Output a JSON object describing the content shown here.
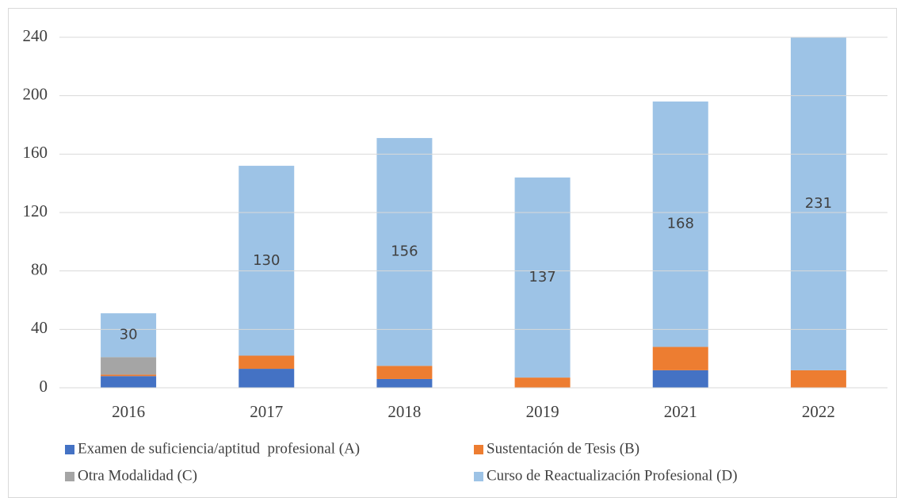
{
  "chart_data": {
    "type": "stacked_bar",
    "categories": [
      "2016",
      "2017",
      "2018",
      "2019",
      "2021",
      "2022"
    ],
    "series": [
      {
        "name": "Examen de suficiencia/aptitud  profesional (A)",
        "color": "#4472c4",
        "values": [
          8,
          13,
          6,
          0,
          12,
          0
        ]
      },
      {
        "name": "Sustentación de Tesis (B)",
        "color": "#ed7d31",
        "values": [
          1,
          9,
          9,
          7,
          16,
          12
        ]
      },
      {
        "name": "Otra Modalidad (C)",
        "color": "#a5a5a5",
        "values": [
          12,
          0,
          0,
          0,
          0,
          0
        ]
      },
      {
        "name": "Curso de Reactualización Profesional (D)",
        "color": "#9dc3e6",
        "values": [
          30,
          130,
          156,
          137,
          168,
          231
        ],
        "data_labels": true
      }
    ],
    "ylim": [
      0,
      240
    ],
    "yticks": [
      0,
      40,
      80,
      120,
      160,
      200,
      240
    ],
    "grid": true,
    "legend": "bottom"
  }
}
